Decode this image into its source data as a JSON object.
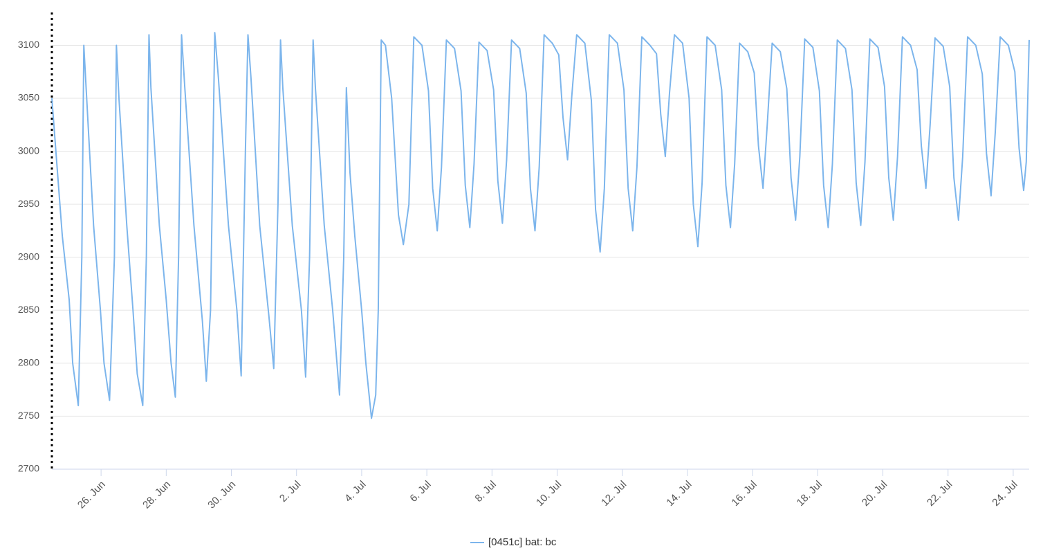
{
  "chart_data": {
    "type": "line",
    "series": [
      {
        "name": "[0451c] bat: bc",
        "color": "#7cb5ec",
        "x": [
          175.49,
          175.81,
          176.02,
          176.13,
          176.3,
          176.41,
          176.47,
          176.54,
          176.77,
          176.98,
          177.09,
          177.26,
          177.41,
          177.47,
          177.55,
          177.79,
          177.98,
          178.11,
          178.28,
          178.39,
          178.47,
          178.53,
          178.79,
          179.0,
          179.15,
          179.28,
          179.38,
          179.47,
          179.57,
          179.85,
          180.11,
          180.23,
          180.36,
          180.49,
          180.6,
          180.91,
          181.17,
          181.3,
          181.43,
          181.51,
          181.6,
          181.87,
          182.15,
          182.3,
          182.43,
          182.51,
          182.58,
          182.87,
          183.15,
          183.28,
          183.4,
          183.51,
          183.58,
          183.85,
          184.11,
          184.32,
          184.45,
          184.53,
          184.64,
          184.79,
          185.0,
          185.13,
          185.3,
          185.43,
          185.51,
          185.6,
          185.73,
          185.92,
          186.13,
          186.28,
          186.45,
          186.6,
          186.85,
          187.05,
          187.18,
          187.32,
          187.45,
          187.6,
          187.85,
          188.05,
          188.18,
          188.32,
          188.45,
          188.6,
          188.85,
          189.05,
          189.18,
          189.32,
          189.45,
          189.6,
          189.85,
          190.05,
          190.18,
          190.32,
          190.45,
          190.6,
          190.85,
          191.05,
          191.18,
          191.32,
          191.45,
          191.6,
          191.85,
          192.05,
          192.18,
          192.32,
          192.45,
          192.6,
          192.85,
          193.05,
          193.18,
          193.32,
          193.45,
          193.6,
          193.85,
          194.05,
          194.18,
          194.32,
          194.45,
          194.6,
          194.85,
          195.05,
          195.18,
          195.32,
          195.45,
          195.6,
          195.85,
          196.05,
          196.18,
          196.32,
          196.45,
          196.6,
          196.85,
          197.05,
          197.18,
          197.32,
          197.45,
          197.6,
          197.85,
          198.05,
          198.18,
          198.32,
          198.45,
          198.6,
          198.85,
          199.05,
          199.18,
          199.32,
          199.45,
          199.6,
          199.85,
          200.05,
          200.18,
          200.32,
          200.45,
          200.6,
          200.85,
          201.05,
          201.18,
          201.32,
          201.45,
          201.6,
          201.85,
          202.05,
          202.18,
          202.32,
          202.45,
          202.6,
          202.85,
          203.05,
          203.18,
          203.32,
          203.45,
          203.6,
          203.85,
          204.05,
          204.18,
          204.32,
          204.45,
          204.6,
          204.85,
          205.05,
          205.18,
          205.32,
          205.4,
          205.49
        ],
        "values": [
          3050,
          2920,
          2860,
          2800,
          2760,
          2900,
          3100,
          3060,
          2930,
          2850,
          2800,
          2765,
          2900,
          3100,
          3050,
          2930,
          2850,
          2790,
          2760,
          2900,
          3110,
          3060,
          2930,
          2860,
          2800,
          2768,
          2900,
          3110,
          3060,
          2930,
          2840,
          2783,
          2850,
          3112,
          3070,
          2930,
          2850,
          2788,
          3000,
          3110,
          3070,
          2930,
          2845,
          2795,
          2950,
          3105,
          3060,
          2930,
          2850,
          2787,
          2900,
          3105,
          3060,
          2930,
          2850,
          2770,
          2900,
          3060,
          2980,
          2920,
          2850,
          2800,
          2748,
          2770,
          2850,
          3105,
          3100,
          3050,
          2940,
          2912,
          2950,
          3108,
          3100,
          3057,
          2965,
          2925,
          2985,
          3105,
          3097,
          3057,
          2968,
          2928,
          2988,
          3103,
          3095,
          3058,
          2972,
          2932,
          2992,
          3105,
          3097,
          3055,
          2965,
          2925,
          2985,
          3110,
          3102,
          3091,
          3032,
          2992,
          3052,
          3110,
          3102,
          3048,
          2945,
          2905,
          2965,
          3110,
          3102,
          3058,
          2965,
          2925,
          2985,
          3108,
          3100,
          3092,
          3035,
          2995,
          3055,
          3110,
          3102,
          3050,
          2950,
          2910,
          2970,
          3108,
          3100,
          3058,
          2968,
          2928,
          2988,
          3102,
          3094,
          3074,
          3005,
          2965,
          3025,
          3102,
          3094,
          3059,
          2975,
          2935,
          2995,
          3106,
          3098,
          3057,
          2968,
          2928,
          2988,
          3105,
          3097,
          3058,
          2970,
          2930,
          2990,
          3106,
          3098,
          3061,
          2975,
          2935,
          2995,
          3108,
          3100,
          3077,
          3005,
          2965,
          3025,
          3107,
          3099,
          3061,
          2975,
          2935,
          2995,
          3108,
          3100,
          3073,
          2998,
          2958,
          3018,
          3108,
          3100,
          3075,
          3003,
          2963,
          2990,
          3105
        ]
      }
    ],
    "xlim": [
      175.49,
      205.49
    ],
    "xticks": [
      {
        "value": 177,
        "label": "26. Jun"
      },
      {
        "value": 179,
        "label": "28. Jun"
      },
      {
        "value": 181,
        "label": "30. Jun"
      },
      {
        "value": 183,
        "label": "2. Jul"
      },
      {
        "value": 185,
        "label": "4. Jul"
      },
      {
        "value": 187,
        "label": "6. Jul"
      },
      {
        "value": 189,
        "label": "8. Jul"
      },
      {
        "value": 191,
        "label": "10. Jul"
      },
      {
        "value": 193,
        "label": "12. Jul"
      },
      {
        "value": 195,
        "label": "14. Jul"
      },
      {
        "value": 197,
        "label": "16. Jul"
      },
      {
        "value": 199,
        "label": "18. Jul"
      },
      {
        "value": 201,
        "label": "20. Jul"
      },
      {
        "value": 203,
        "label": "22. Jul"
      },
      {
        "value": 205,
        "label": "24. Jul"
      }
    ],
    "ylim": [
      2700,
      3131
    ],
    "yticks": [
      2700,
      2750,
      2800,
      2850,
      2900,
      2950,
      3000,
      3050,
      3100
    ],
    "grid": true
  }
}
